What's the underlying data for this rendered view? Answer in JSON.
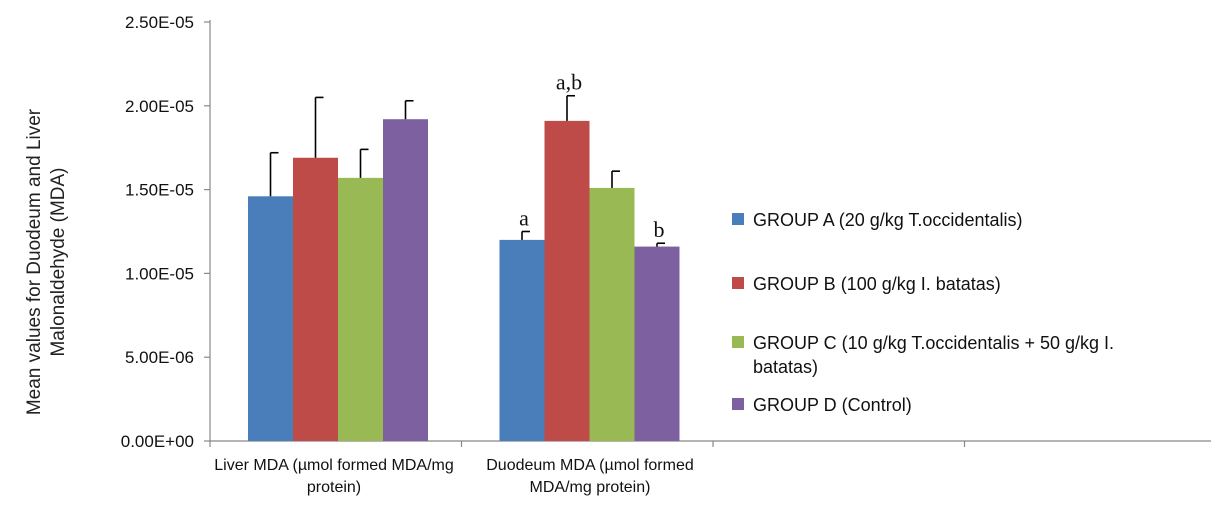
{
  "chart_data": {
    "type": "bar",
    "title": "",
    "xlabel": "",
    "ylabel": "Mean values for Duodeum and Liver Malonaldehyde (MDA)",
    "ylim": [
      0,
      2.5e-05
    ],
    "y_ticks": [
      0,
      5e-06,
      1e-05,
      1.5e-05,
      2e-05,
      2.5e-05
    ],
    "y_tick_labels": [
      "0.00E+00",
      "5.00E-06",
      "1.00E-05",
      "1.50E-05",
      "2.00E-05",
      "2.50E-05"
    ],
    "categories": [
      "Liver MDA (µmol formed MDA/mg protein)",
      "Duodeum MDA (µmol formed MDA/mg protein)",
      "",
      ""
    ],
    "legend_position": "right",
    "series": [
      {
        "name": "GROUP A (20 g/kg T.occidentalis)",
        "color": "#4a7ebb",
        "values": [
          1.46e-05,
          1.2e-05,
          null,
          null
        ],
        "errors": [
          2.6e-06,
          5e-07,
          null,
          null
        ],
        "annotations": [
          "",
          "a",
          "",
          ""
        ]
      },
      {
        "name": "GROUP B (100 g/kg I. batatas)",
        "color": "#be4b48",
        "values": [
          1.69e-05,
          1.91e-05,
          null,
          null
        ],
        "errors": [
          3.6e-06,
          1.5e-06,
          null,
          null
        ],
        "annotations": [
          "",
          "a,b",
          "",
          ""
        ]
      },
      {
        "name": "GROUP C (10 g/kg T.occidentalis + 50 g/kg I. batatas)",
        "color": "#98b954",
        "values": [
          1.57e-05,
          1.51e-05,
          null,
          null
        ],
        "errors": [
          1.7e-06,
          1e-06,
          null,
          null
        ],
        "annotations": [
          "",
          "",
          "",
          ""
        ]
      },
      {
        "name": "GROUP D (Control)",
        "color": "#7d60a0",
        "values": [
          1.92e-05,
          1.16e-05,
          null,
          null
        ],
        "errors": [
          1.1e-06,
          2e-07,
          null,
          null
        ],
        "annotations": [
          "",
          "b",
          "",
          ""
        ]
      }
    ]
  }
}
